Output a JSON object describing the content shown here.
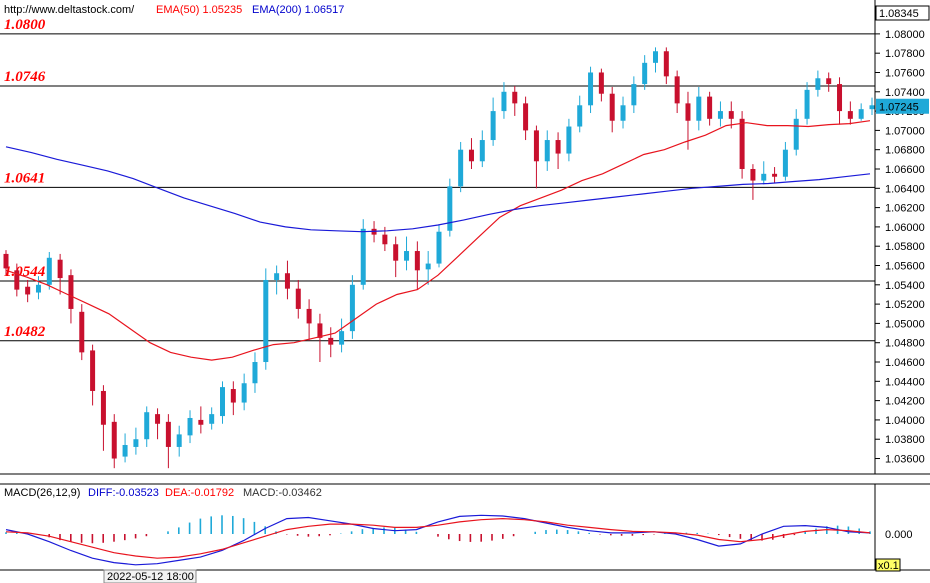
{
  "header": {
    "url": "http://www.deltastock.com/",
    "ema50": "EMA(50)  1.05235",
    "ema200": "EMA(200)  1.06517"
  },
  "macd_header": {
    "name": "MACD(26,12,9)",
    "diff": "DIFF:-0.03523",
    "dea": "DEA:-0.01792",
    "macd": "MACD:-0.03462"
  },
  "footer": {
    "date": "2022-05-12 18:00",
    "scale": "x0.1"
  },
  "colors": {
    "up": "#1fa9d8",
    "down": "#c8102e",
    "ema50": "#e8141e",
    "ema200": "#1a1ad8",
    "diff": "#1a1ad8",
    "dea": "#e8141e"
  },
  "chart_data": [
    {
      "type": "candlestick",
      "title": "",
      "ylim": [
        1.0345,
        1.0832
      ],
      "current_price": "1.08345",
      "last_price": "1.07245",
      "y_ticks": [
        "1.08200",
        "1.08000",
        "1.07800",
        "1.07600",
        "1.07400",
        "1.07200",
        "1.07000",
        "1.06800",
        "1.06600",
        "1.06400",
        "1.06200",
        "1.06000",
        "1.05800",
        "1.05600",
        "1.05400",
        "1.05200",
        "1.05000",
        "1.04800",
        "1.04600",
        "1.04400",
        "1.04200",
        "1.04000",
        "1.03800",
        "1.03600"
      ],
      "levels": [
        {
          "label": "1.0800",
          "value": 1.08
        },
        {
          "label": "1.0746",
          "value": 1.0746
        },
        {
          "label": "1.0641",
          "value": 1.0641
        },
        {
          "label": "1.0544",
          "value": 1.0544
        },
        {
          "label": "1.0482",
          "value": 1.0482
        }
      ],
      "series": [
        {
          "name": "EMA(50)",
          "values": [
            1.0555,
            1.0548,
            1.054,
            1.053,
            1.052,
            1.051,
            1.0495,
            1.048,
            1.047,
            1.0465,
            1.0462,
            1.0465,
            1.0472,
            1.0478,
            1.048,
            1.0485,
            1.049,
            1.0505,
            1.052,
            1.053,
            1.0535,
            1.055,
            1.057,
            1.059,
            1.061,
            1.0622,
            1.063,
            1.0638,
            1.0648,
            1.0655,
            1.0665,
            1.0675,
            1.068,
            1.0688,
            1.0695,
            1.0705,
            1.0708,
            1.0705,
            1.0705,
            1.0704,
            1.0706,
            1.0707,
            1.071
          ]
        },
        {
          "name": "EMA(200)",
          "values": [
            1.0683,
            1.0677,
            1.067,
            1.0664,
            1.0658,
            1.065,
            1.064,
            1.063,
            1.0622,
            1.0614,
            1.0605,
            1.06,
            1.0597,
            1.0596,
            1.0595,
            1.0596,
            1.0598,
            1.0602,
            1.0607,
            1.0613,
            1.0618,
            1.0622,
            1.0625,
            1.0628,
            1.0631,
            1.0634,
            1.0637,
            1.064,
            1.0642,
            1.0644,
            1.0645,
            1.0647,
            1.0649,
            1.0652,
            1.0655
          ]
        }
      ],
      "candles": [
        [
          1.0572,
          1.0557,
          1.0576,
          1.055
        ],
        [
          1.0555,
          1.0535,
          1.0562,
          1.0528
        ],
        [
          1.0538,
          1.053,
          1.0545,
          1.0522
        ],
        [
          1.0532,
          1.054,
          1.0549,
          1.0525
        ],
        [
          1.054,
          1.0568,
          1.0574,
          1.0535
        ],
        [
          1.0566,
          1.0547,
          1.0572,
          1.053
        ],
        [
          1.055,
          1.0515,
          1.0556,
          1.05
        ],
        [
          1.0512,
          1.047,
          1.052,
          1.0462
        ],
        [
          1.0472,
          1.043,
          1.0478,
          1.0415
        ],
        [
          1.043,
          1.0395,
          1.0436,
          1.0368
        ],
        [
          1.0398,
          1.036,
          1.0406,
          1.035
        ],
        [
          1.0362,
          1.0374,
          1.0386,
          1.0356
        ],
        [
          1.0372,
          1.038,
          1.0392,
          1.0364
        ],
        [
          1.038,
          1.0408,
          1.0414,
          1.0372
        ],
        [
          1.0406,
          1.0396,
          1.0412,
          1.038
        ],
        [
          1.0398,
          1.0372,
          1.0406,
          1.035
        ],
        [
          1.0372,
          1.0385,
          1.0394,
          1.0362
        ],
        [
          1.0384,
          1.0402,
          1.041,
          1.0376
        ],
        [
          1.04,
          1.0395,
          1.0414,
          1.0386
        ],
        [
          1.0396,
          1.0406,
          1.0413,
          1.039
        ],
        [
          1.0404,
          1.0434,
          1.044,
          1.0396
        ],
        [
          1.0432,
          1.0418,
          1.044,
          1.0405
        ],
        [
          1.0418,
          1.0438,
          1.0448,
          1.041
        ],
        [
          1.0438,
          1.046,
          1.047,
          1.0428
        ],
        [
          1.046,
          1.0545,
          1.0557,
          1.0452
        ],
        [
          1.0545,
          1.0552,
          1.056,
          1.053
        ],
        [
          1.0552,
          1.0536,
          1.0565,
          1.0525
        ],
        [
          1.0536,
          1.0515,
          1.0545,
          1.0505
        ],
        [
          1.0515,
          1.05,
          1.0525,
          1.0482
        ],
        [
          1.05,
          1.0485,
          1.051,
          1.046
        ],
        [
          1.0485,
          1.0478,
          1.0496,
          1.0465
        ],
        [
          1.0478,
          1.0492,
          1.0505,
          1.047
        ],
        [
          1.0492,
          1.054,
          1.055,
          1.0484
        ],
        [
          1.054,
          1.0598,
          1.0608,
          1.0535
        ],
        [
          1.0598,
          1.0592,
          1.0606,
          1.0584
        ],
        [
          1.0592,
          1.0582,
          1.06,
          1.0575
        ],
        [
          1.0582,
          1.0565,
          1.059,
          1.0548
        ],
        [
          1.0565,
          1.0575,
          1.059,
          1.0555
        ],
        [
          1.0575,
          1.0555,
          1.0585,
          1.0535
        ],
        [
          1.0556,
          1.0562,
          1.0575,
          1.054
        ],
        [
          1.0562,
          1.0595,
          1.0602,
          1.0558
        ],
        [
          1.0596,
          1.0642,
          1.065,
          1.059
        ],
        [
          1.0642,
          1.068,
          1.0688,
          1.0636
        ],
        [
          1.068,
          1.0668,
          1.0692,
          1.066
        ],
        [
          1.0668,
          1.069,
          1.07,
          1.0662
        ],
        [
          1.069,
          1.072,
          1.0734,
          1.0684
        ],
        [
          1.072,
          1.074,
          1.075,
          1.0712
        ],
        [
          1.074,
          1.0728,
          1.0746,
          1.0715
        ],
        [
          1.0728,
          1.07,
          1.0735,
          1.069
        ],
        [
          1.07,
          1.0668,
          1.0705,
          1.064
        ],
        [
          1.0668,
          1.069,
          1.07,
          1.0658
        ],
        [
          1.069,
          1.0676,
          1.0698,
          1.066
        ],
        [
          1.0676,
          1.0704,
          1.0712,
          1.0668
        ],
        [
          1.0704,
          1.0726,
          1.0736,
          1.0698
        ],
        [
          1.0726,
          1.076,
          1.0766,
          1.0718
        ],
        [
          1.076,
          1.0738,
          1.0764,
          1.073
        ],
        [
          1.0738,
          1.071,
          1.0745,
          1.0698
        ],
        [
          1.071,
          1.0726,
          1.0735,
          1.0702
        ],
        [
          1.0726,
          1.0748,
          1.0756,
          1.0718
        ],
        [
          1.0748,
          1.077,
          1.0778,
          1.0742
        ],
        [
          1.077,
          1.0782,
          1.0786,
          1.076
        ],
        [
          1.0782,
          1.0756,
          1.0786,
          1.0748
        ],
        [
          1.0756,
          1.0728,
          1.0762,
          1.0718
        ],
        [
          1.0728,
          1.071,
          1.074,
          1.068
        ],
        [
          1.071,
          1.0735,
          1.0745,
          1.07
        ],
        [
          1.0735,
          1.0712,
          1.074,
          1.0705
        ],
        [
          1.0712,
          1.072,
          1.073,
          1.0704
        ],
        [
          1.072,
          1.0712,
          1.073,
          1.0702
        ],
        [
          1.0712,
          1.066,
          1.072,
          1.065
        ],
        [
          1.066,
          1.0648,
          1.0665,
          1.0628
        ],
        [
          1.0648,
          1.0655,
          1.0668,
          1.0644
        ],
        [
          1.0655,
          1.0652,
          1.0662,
          1.0645
        ],
        [
          1.0652,
          1.068,
          1.0688,
          1.0648
        ],
        [
          1.068,
          1.0712,
          1.0722,
          1.0674
        ],
        [
          1.0712,
          1.0742,
          1.075,
          1.0706
        ],
        [
          1.0742,
          1.0754,
          1.0762,
          1.0735
        ],
        [
          1.0754,
          1.0748,
          1.076,
          1.074
        ],
        [
          1.0748,
          1.072,
          1.0755,
          1.0706
        ],
        [
          1.072,
          1.0712,
          1.073,
          1.0706
        ],
        [
          1.0712,
          1.0722,
          1.0728,
          1.071
        ],
        [
          1.0722,
          1.0726,
          1.0734,
          1.0716
        ]
      ]
    },
    {
      "type": "bar",
      "title": "MACD(26,12,9)",
      "zero_label": "0.000",
      "series": [
        {
          "name": "DIFF",
          "values": [
            0.2,
            0.0,
            -0.35,
            -0.75,
            -1.1,
            -1.3,
            -1.4,
            -1.35,
            -1.2,
            -1.05,
            -0.75,
            -0.3,
            0.25,
            0.7,
            0.75,
            0.6,
            0.45,
            0.25,
            0.15,
            0.2,
            0.55,
            0.8,
            0.85,
            0.82,
            0.7,
            0.5,
            0.3,
            0.15,
            0.05,
            0.05,
            0.1,
            0.0,
            -0.25,
            -0.55,
            -0.45,
            0.0,
            0.35,
            0.38,
            0.3,
            0.1,
            0.05
          ]
        },
        {
          "name": "DEA",
          "values": [
            0.1,
            0.05,
            -0.1,
            -0.35,
            -0.6,
            -0.85,
            -1.0,
            -1.1,
            -1.05,
            -0.9,
            -0.7,
            -0.4,
            -0.1,
            0.2,
            0.35,
            0.45,
            0.45,
            0.4,
            0.3,
            0.3,
            0.4,
            0.55,
            0.65,
            0.7,
            0.65,
            0.55,
            0.4,
            0.3,
            0.2,
            0.12,
            0.1,
            0.05,
            -0.05,
            -0.25,
            -0.35,
            -0.25,
            -0.05,
            0.12,
            0.2,
            0.15,
            0.05
          ]
        }
      ],
      "hist": [
        0.08,
        0.1,
        0.05,
        0.0,
        -0.15,
        -0.28,
        -0.36,
        -0.4,
        -0.42,
        -0.4,
        -0.35,
        -0.28,
        -0.2,
        -0.1,
        0.0,
        0.12,
        0.3,
        0.52,
        0.7,
        0.8,
        0.85,
        0.82,
        0.72,
        0.55,
        0.35,
        0.12,
        -0.02,
        -0.08,
        -0.12,
        -0.1,
        -0.06,
        0.02,
        0.12,
        0.22,
        0.28,
        0.3,
        0.28,
        0.2,
        0.1,
        0.0,
        -0.12,
        -0.24,
        -0.32,
        -0.36,
        -0.35,
        -0.3,
        -0.22,
        -0.1,
        0.0,
        0.1,
        0.18,
        0.2,
        0.18,
        0.12,
        0.05,
        -0.02,
        -0.06,
        -0.08,
        -0.08,
        -0.05,
        -0.02,
        0.02,
        0.05,
        0.06,
        0.05,
        0.02,
        -0.05,
        -0.14,
        -0.22,
        -0.28,
        -0.3,
        -0.26,
        -0.18,
        -0.05,
        0.1,
        0.25,
        0.35,
        0.38,
        0.34,
        0.25,
        0.12
      ]
    }
  ]
}
